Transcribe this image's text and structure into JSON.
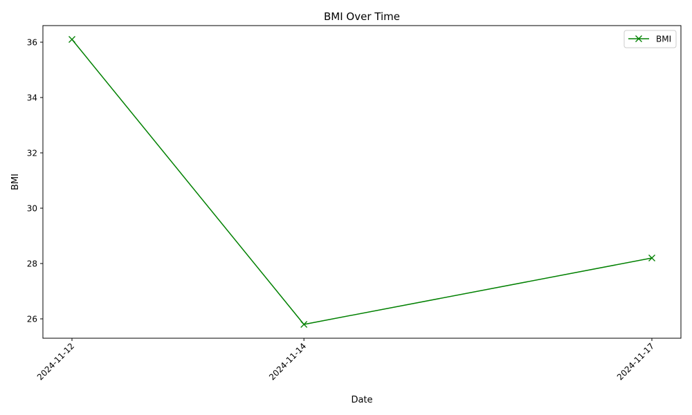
{
  "chart_data": {
    "type": "line",
    "title": "BMI Over Time",
    "xlabel": "Date",
    "ylabel": "BMI",
    "x": [
      "2024-11-12",
      "2024-11-14",
      "2024-11-17"
    ],
    "series": [
      {
        "name": "BMI",
        "values": [
          36.1,
          25.8,
          28.2
        ],
        "color": "#008000",
        "marker": "x"
      }
    ],
    "yticks": [
      26,
      28,
      30,
      32,
      34,
      36
    ],
    "ylim": [
      25.3,
      36.6
    ],
    "grid": false,
    "legend": "top-right"
  }
}
